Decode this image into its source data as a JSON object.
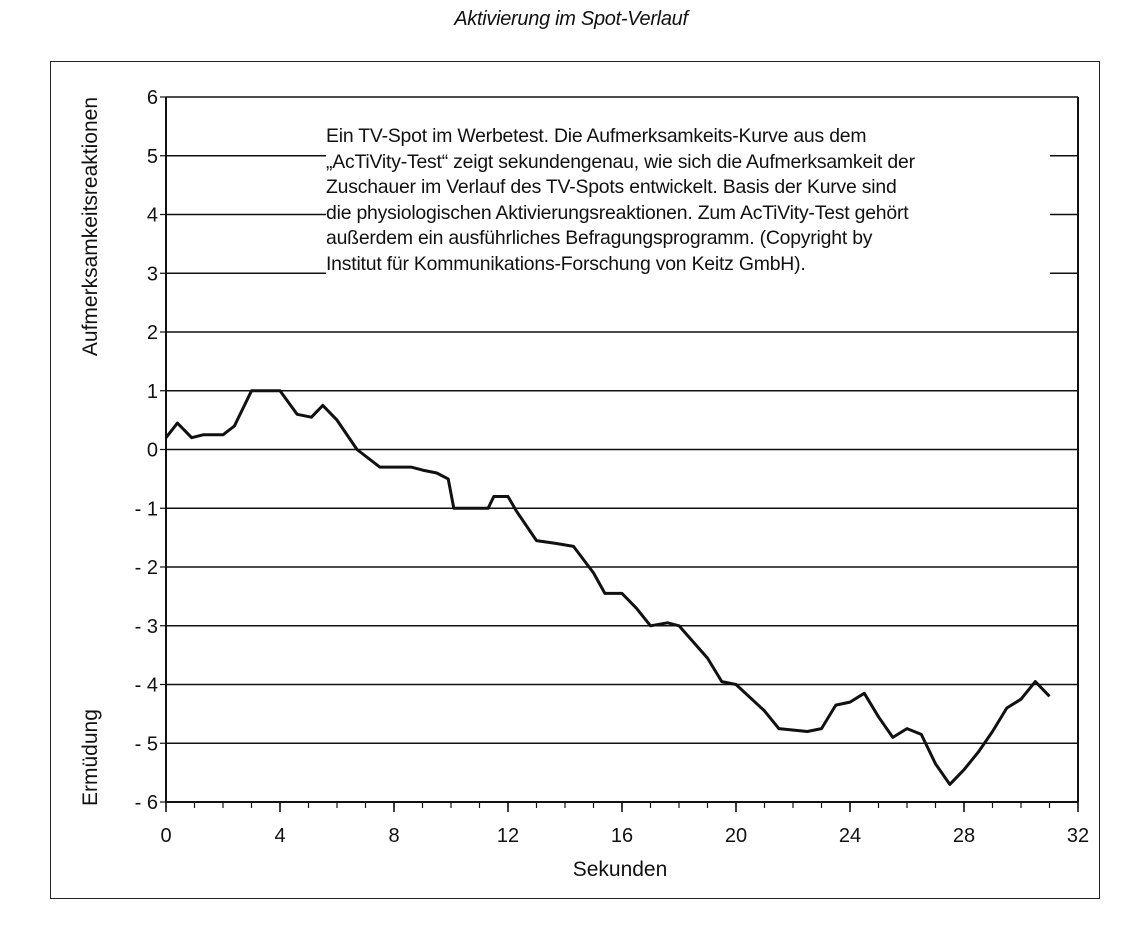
{
  "chart_data": {
    "type": "line",
    "title": "Aktivierung im Spot-Verlauf",
    "xlabel": "Sekunden",
    "ylabel_top": "Aufmerksamkeitsreaktionen",
    "ylabel_bottom": "Ermüdung",
    "xlim": [
      0,
      32
    ],
    "ylim": [
      -6,
      6
    ],
    "x_ticks": [
      0,
      4,
      8,
      12,
      16,
      20,
      24,
      28,
      32
    ],
    "y_ticks": [
      6,
      5,
      4,
      3,
      2,
      1,
      0,
      -1,
      -2,
      -3,
      -4,
      -5,
      -6
    ],
    "y_tick_labels": [
      "6",
      "5",
      "4",
      "3",
      "2",
      "1",
      "0",
      "- 1",
      "- 2",
      "- 3",
      "- 4",
      "- 5",
      "- 6"
    ],
    "grid_y": true,
    "series": [
      {
        "x": [
          0,
          0.4,
          0.9,
          1.3,
          2.0,
          2.4,
          3.0,
          4.0,
          4.6,
          5.1,
          5.5,
          6.0,
          6.7,
          7.5,
          8.6,
          9.0,
          9.5,
          9.9,
          10.1,
          11.3,
          11.5,
          12.0,
          12.3,
          13.0,
          13.7,
          14.3,
          15.0,
          15.4,
          16.0,
          16.5,
          17.0,
          17.6,
          18.0,
          19.0,
          19.5,
          20.0,
          21.0,
          21.5,
          22.5,
          23.0,
          23.5,
          24.0,
          24.5,
          25.0,
          25.5,
          26.0,
          26.5,
          27.0,
          27.5,
          28.0,
          28.5,
          29.0,
          29.5,
          30.0,
          30.5,
          31.0
        ],
        "y": [
          0.2,
          0.45,
          0.2,
          0.25,
          0.25,
          0.4,
          1.0,
          1.0,
          0.6,
          0.55,
          0.75,
          0.5,
          0.0,
          -0.3,
          -0.3,
          -0.35,
          -0.4,
          -0.5,
          -1.0,
          -1.0,
          -0.8,
          -0.8,
          -1.05,
          -1.55,
          -1.6,
          -1.65,
          -2.1,
          -2.45,
          -2.45,
          -2.7,
          -3.0,
          -2.95,
          -3.0,
          -3.55,
          -3.95,
          -4.0,
          -4.45,
          -4.75,
          -4.8,
          -4.75,
          -4.35,
          -4.3,
          -4.15,
          -4.55,
          -4.9,
          -4.75,
          -4.85,
          -5.35,
          -5.7,
          -5.45,
          -5.15,
          -4.8,
          -4.4,
          -4.25,
          -3.95,
          -4.2
        ]
      }
    ],
    "annotation_lines": [
      "Ein TV-Spot im Werbetest. Die Aufmerksamkeits-Kurve aus dem",
      "„AcTiVity-Test“ zeigt sekundengenau, wie sich die Aufmerksamkeit der",
      "Zuschauer im Verlauf des TV-Spots entwickelt. Basis der Kurve sind",
      "die physiologischen Aktivierungsreaktionen. Zum AcTiVity-Test gehört",
      "außerdem ein ausführliches Befragungsprogramm. (Copyright by",
      "Institut für Kommunikations-Forschung von Keitz GmbH)."
    ]
  },
  "colors": {
    "line": "#111111",
    "grid": "#111111",
    "background": "#ffffff"
  }
}
